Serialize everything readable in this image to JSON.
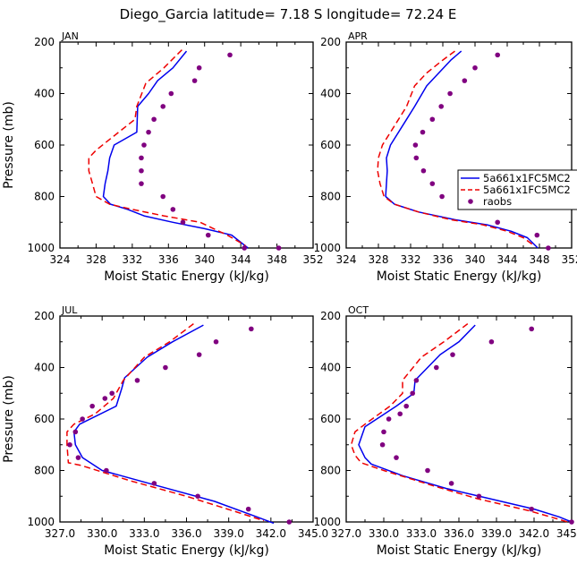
{
  "title": "Diego_Garcia  latitude= 7.18 S longitude= 72.24 E",
  "colors": {
    "model1": "#0000ee",
    "model2": "#ee0000",
    "obs": "#800080"
  },
  "chart_data": [
    {
      "type": "line",
      "panel": "JAN",
      "xlabel": "Moist Static Energy (kJ/kg)",
      "ylabel": "Pressure (mb)",
      "xlim": [
        324,
        352
      ],
      "ylim": [
        1000,
        200
      ],
      "xticks": [
        324,
        328,
        332,
        336,
        340,
        344,
        348,
        352
      ],
      "xtick_labels": [
        "324",
        "328",
        "332",
        "336",
        "340",
        "344",
        "348",
        "352"
      ],
      "yticks": [
        200,
        400,
        600,
        800,
        1000
      ],
      "ytick_labels": [
        "200",
        "400",
        "600",
        "800",
        "1000"
      ],
      "series": [
        {
          "name": "5a661x1FC5MC2",
          "style": "solid",
          "color": "#0000ee",
          "x": [
            338.0,
            336.5,
            334.8,
            333.8,
            332.6,
            332.5,
            330.0,
            329.5,
            329.3,
            329.0,
            328.8,
            329.6,
            331.5,
            333.3,
            336.5,
            340.0,
            343.0,
            344.8
          ],
          "y": [
            235,
            300,
            350,
            400,
            450,
            550,
            600,
            650,
            700,
            750,
            800,
            830,
            850,
            875,
            900,
            925,
            950,
            1000
          ]
        },
        {
          "name": "5a661x1FC5MC2",
          "style": "dashed",
          "color": "#ee0000",
          "x": [
            337.5,
            335.5,
            333.5,
            332.5,
            332.3,
            330.5,
            328.0,
            327.2,
            327.2,
            327.6,
            328.0,
            329.5,
            332.0,
            335.5,
            339.5,
            342.5,
            344.5
          ],
          "y": [
            230,
            300,
            360,
            450,
            500,
            550,
            620,
            650,
            700,
            750,
            800,
            830,
            850,
            875,
            900,
            950,
            990
          ]
        }
      ],
      "points": {
        "name": "raobs",
        "x": [
          342.8,
          339.4,
          338.9,
          336.3,
          335.4,
          334.4,
          333.8,
          333.3,
          333.0,
          333.0,
          333.0,
          335.4,
          336.5,
          337.6,
          340.4,
          344.4,
          348.2
        ],
        "y": [
          250,
          300,
          350,
          400,
          450,
          500,
          550,
          600,
          650,
          700,
          750,
          800,
          850,
          900,
          950,
          1000,
          1000
        ]
      }
    },
    {
      "type": "line",
      "panel": "APR",
      "xlabel": "Moist Static Energy (kJ/kg)",
      "ylabel": "Pressure (mb)",
      "xlim": [
        324,
        352
      ],
      "ylim": [
        1000,
        200
      ],
      "xticks": [
        324,
        328,
        332,
        336,
        340,
        344,
        348,
        352
      ],
      "xtick_labels": [
        "324",
        "328",
        "332",
        "336",
        "340",
        "344",
        "348",
        "352"
      ],
      "yticks": [
        200,
        400,
        600,
        800,
        1000
      ],
      "ytick_labels": [
        "200",
        "400",
        "600",
        "800",
        "1000"
      ],
      "series": [
        {
          "name": "5a661x1FC5MC2",
          "style": "solid",
          "color": "#0000ee",
          "x": [
            338.3,
            337.0,
            335.5,
            334.0,
            332.5,
            331.5,
            329.5,
            329.0,
            329.1,
            329.0,
            328.9,
            330.0,
            333.0,
            337.5,
            341.5,
            344.5,
            346.5,
            347.8
          ],
          "y": [
            235,
            270,
            320,
            370,
            450,
            500,
            600,
            650,
            700,
            750,
            800,
            830,
            860,
            890,
            910,
            935,
            960,
            1000
          ]
        },
        {
          "name": "5a661x1FC5MC2",
          "style": "dashed",
          "color": "#ee0000",
          "x": [
            337.5,
            336.0,
            334.0,
            332.5,
            331.5,
            330.5,
            328.5,
            328.0,
            327.9,
            328.2,
            328.7,
            330.0,
            333.0,
            337.0,
            341.0,
            344.0,
            346.0,
            347.3
          ],
          "y": [
            235,
            270,
            320,
            370,
            450,
            500,
            600,
            650,
            700,
            750,
            800,
            830,
            860,
            890,
            910,
            935,
            960,
            990
          ]
        }
      ],
      "points": {
        "name": "raobs",
        "x": [
          342.8,
          340.0,
          338.7,
          336.9,
          335.8,
          334.7,
          333.5,
          332.6,
          332.7,
          333.6,
          334.7,
          335.9,
          342.8,
          347.7,
          349.1
        ],
        "y": [
          250,
          300,
          350,
          400,
          450,
          500,
          550,
          600,
          650,
          700,
          750,
          800,
          900,
          950,
          1000
        ]
      }
    },
    {
      "type": "line",
      "panel": "JUL",
      "xlabel": "Moist Static Energy (kJ/kg)",
      "ylabel": "Pressure (mb)",
      "xlim": [
        327,
        345
      ],
      "ylim": [
        1000,
        200
      ],
      "xticks": [
        327,
        330,
        333,
        336,
        339,
        342,
        345
      ],
      "xtick_labels": [
        "327.0",
        "330.0",
        "333.0",
        "336.0",
        "339.0",
        "342.0",
        "345.0"
      ],
      "yticks": [
        200,
        400,
        600,
        800,
        1000
      ],
      "ytick_labels": [
        "200",
        "400",
        "600",
        "800",
        "1000"
      ],
      "series": [
        {
          "name": "5a661x1FC5MC2",
          "style": "solid",
          "color": "#0000ee",
          "x": [
            337.2,
            335.0,
            333.2,
            331.6,
            331.4,
            331.0,
            328.4,
            328.0,
            328.1,
            328.6,
            330.0,
            334.0,
            338.0,
            341.0,
            342.2
          ],
          "y": [
            235,
            300,
            360,
            440,
            480,
            550,
            620,
            650,
            700,
            750,
            800,
            860,
            920,
            980,
            1005
          ]
        },
        {
          "name": "5a661x1FC5MC2",
          "style": "dashed",
          "color": "#ee0000",
          "x": [
            336.5,
            334.8,
            333.0,
            331.5,
            330.8,
            329.5,
            328.0,
            327.5,
            327.5,
            327.6,
            328.5,
            332.0,
            336.0,
            339.5,
            341.5
          ],
          "y": [
            230,
            300,
            360,
            450,
            520,
            580,
            620,
            650,
            700,
            770,
            780,
            840,
            900,
            960,
            995
          ]
        }
      ],
      "points": {
        "name": "raobs",
        "x": [
          340.6,
          338.1,
          336.9,
          334.5,
          332.5,
          330.7,
          330.2,
          329.3,
          328.6,
          328.1,
          327.7,
          328.3,
          330.3,
          333.7,
          336.8,
          340.4,
          343.3
        ],
        "y": [
          250,
          300,
          350,
          400,
          450,
          500,
          520,
          550,
          600,
          650,
          700,
          750,
          800,
          850,
          900,
          950,
          1000
        ]
      }
    },
    {
      "type": "line",
      "panel": "OCT",
      "xlabel": "Moist Static Energy (kJ/kg)",
      "ylabel": "Pressure (mb)",
      "xlim": [
        327,
        345
      ],
      "ylim": [
        1000,
        200
      ],
      "xticks": [
        327,
        330,
        333,
        336,
        339,
        342,
        345
      ],
      "xtick_labels": [
        "327.0",
        "330.0",
        "333.0",
        "336.0",
        "339.0",
        "342.0",
        "345.0"
      ],
      "yticks": [
        200,
        400,
        600,
        800,
        1000
      ],
      "ytick_labels": [
        "200",
        "400",
        "600",
        "800",
        "1000"
      ],
      "series": [
        {
          "name": "5a661x1FC5MC2",
          "style": "solid",
          "color": "#0000ee",
          "x": [
            337.3,
            336.0,
            334.5,
            333.5,
            332.5,
            332.4,
            331.0,
            328.5,
            328.0,
            328.5,
            329.0,
            331.5,
            335.0,
            338.5,
            342.0,
            344.0,
            345.0
          ],
          "y": [
            235,
            300,
            350,
            400,
            450,
            500,
            550,
            630,
            700,
            750,
            775,
            820,
            870,
            910,
            950,
            980,
            1000
          ]
        },
        {
          "name": "5a661x1FC5MC2",
          "style": "dashed",
          "color": "#ee0000",
          "x": [
            336.7,
            334.8,
            333.0,
            331.5,
            331.5,
            330.5,
            328.5,
            327.7,
            327.4,
            327.7,
            328.2,
            330.0,
            334.0,
            337.5,
            341.5,
            344.0,
            345.0
          ],
          "y": [
            230,
            300,
            360,
            450,
            500,
            550,
            620,
            650,
            700,
            740,
            770,
            800,
            860,
            910,
            955,
            990,
            1005
          ]
        }
      ],
      "points": {
        "name": "raobs",
        "x": [
          341.8,
          338.6,
          335.5,
          334.2,
          332.6,
          332.3,
          331.8,
          331.3,
          330.4,
          330.0,
          329.9,
          331.0,
          333.5,
          335.4,
          337.6,
          341.8,
          345.0
        ],
        "y": [
          250,
          300,
          350,
          400,
          450,
          500,
          550,
          580,
          600,
          650,
          700,
          750,
          800,
          850,
          900,
          950,
          1000
        ]
      }
    }
  ],
  "legend": {
    "entries": [
      {
        "label": "5a661x1FC5MC2",
        "style": "solid",
        "color": "#0000ee"
      },
      {
        "label": "5a661x1FC5MC2",
        "style": "dashed",
        "color": "#ee0000"
      },
      {
        "label": "raobs",
        "style": "marker",
        "color": "#800080"
      }
    ]
  }
}
